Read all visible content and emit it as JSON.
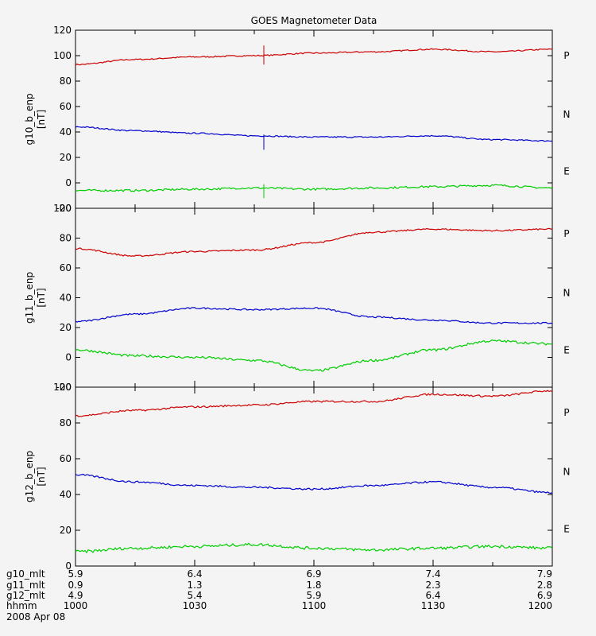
{
  "chart_data": [
    {
      "type": "line",
      "title": "GOES Magnetometer Data",
      "ylabel": "g10_b_enp",
      "yunit": "[nT]",
      "ylim": [
        -20,
        120
      ],
      "yticks": [
        -20,
        0,
        20,
        40,
        60,
        80,
        100,
        120
      ],
      "x": [
        "1000",
        "1015",
        "1030",
        "1045",
        "1100",
        "1115",
        "1130",
        "1145",
        "1200"
      ],
      "series": [
        {
          "name": "P",
          "color": "#cc0000",
          "values": [
            93,
            97,
            99,
            100,
            102,
            103,
            105,
            103,
            105
          ]
        },
        {
          "name": "N",
          "color": "#0000cc",
          "values": [
            44,
            41,
            39,
            37,
            36,
            36,
            37,
            34,
            33
          ]
        },
        {
          "name": "E",
          "color": "#00cc00",
          "values": [
            -6,
            -6,
            -5,
            -4,
            -5,
            -4,
            -3,
            -2,
            -4
          ]
        }
      ]
    },
    {
      "type": "line",
      "ylabel": "g11_b_enp",
      "yunit": "[nT]",
      "ylim": [
        -20,
        100
      ],
      "yticks": [
        -20,
        0,
        20,
        40,
        60,
        80,
        100
      ],
      "x": [
        "1000",
        "1015",
        "1030",
        "1045",
        "1100",
        "1115",
        "1130",
        "1145",
        "1200"
      ],
      "series": [
        {
          "name": "P",
          "color": "#cc0000",
          "values": [
            73,
            68,
            71,
            72,
            77,
            84,
            86,
            85,
            86
          ]
        },
        {
          "name": "N",
          "color": "#0000cc",
          "values": [
            24,
            29,
            33,
            32,
            33,
            27,
            25,
            23,
            23
          ]
        },
        {
          "name": "E",
          "color": "#00cc00",
          "values": [
            5,
            1,
            0,
            -2,
            -9,
            -2,
            5,
            11,
            9
          ]
        }
      ]
    },
    {
      "type": "line",
      "ylabel": "g12_b_enp",
      "yunit": "[nT]",
      "ylim": [
        0,
        100
      ],
      "yticks": [
        0,
        20,
        40,
        60,
        80,
        100
      ],
      "x": [
        "1000",
        "1015",
        "1030",
        "1045",
        "1100",
        "1115",
        "1130",
        "1145",
        "1200"
      ],
      "series": [
        {
          "name": "P",
          "color": "#cc0000",
          "values": [
            84,
            87,
            89,
            90,
            92,
            92,
            96,
            95,
            98
          ]
        },
        {
          "name": "N",
          "color": "#0000cc",
          "values": [
            51,
            47,
            45,
            44,
            43,
            45,
            47,
            44,
            41
          ]
        },
        {
          "name": "E",
          "color": "#00cc00",
          "values": [
            8,
            10,
            11,
            12,
            10,
            9,
            10,
            11,
            10
          ]
        }
      ]
    }
  ],
  "footer": {
    "rows": [
      {
        "label": "g10_mlt",
        "values": [
          "5.9",
          "6.4",
          "6.9",
          "7.4",
          "7.9"
        ]
      },
      {
        "label": "g11_mlt",
        "values": [
          "0.9",
          "1.3",
          "1.8",
          "2.3",
          "2.8"
        ]
      },
      {
        "label": "g12_mlt",
        "values": [
          "4.9",
          "5.4",
          "5.9",
          "6.4",
          "6.9"
        ]
      },
      {
        "label": "hhmm",
        "values": [
          "1000",
          "1030",
          "1100",
          "1130",
          "1200"
        ]
      }
    ],
    "date": "2008 Apr 08"
  }
}
